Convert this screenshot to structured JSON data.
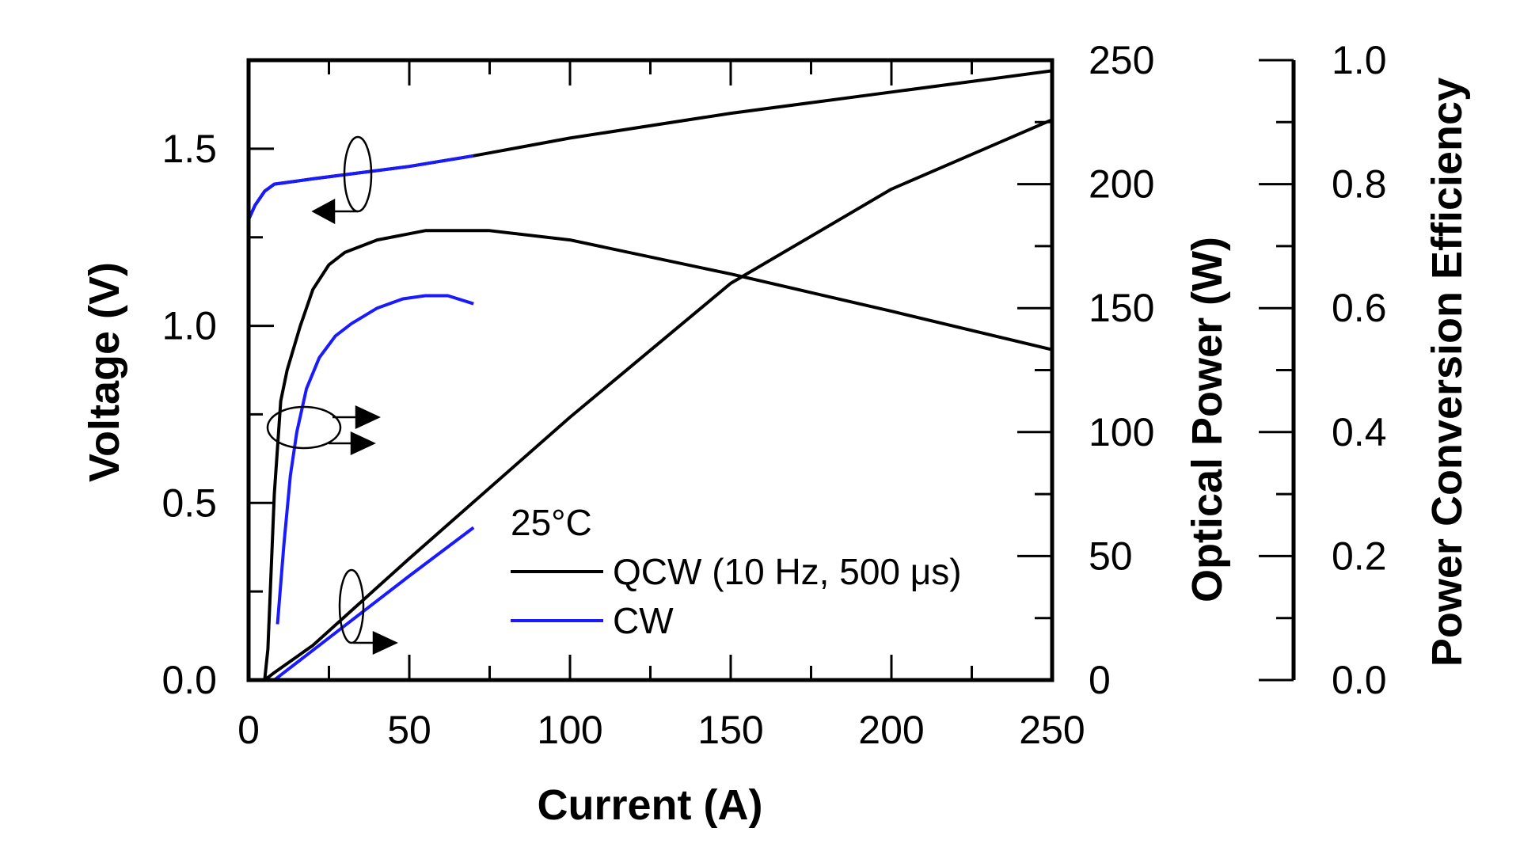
{
  "chart_data": {
    "type": "line",
    "xlabel": "Current (A)",
    "ylabel_left": "Voltage (V)",
    "ylabel_right1": "Optical Power (W)",
    "ylabel_right2": "Power Conversion Efficiency",
    "xlim": [
      0,
      250
    ],
    "ylim_left": [
      0,
      1.75
    ],
    "ylim_right1": [
      0,
      250
    ],
    "ylim_right2": [
      0,
      1.0
    ],
    "x_ticks": [
      "0",
      "50",
      "100",
      "150",
      "200",
      "250"
    ],
    "y_left_ticks": [
      "0.0",
      "0.5",
      "1.0",
      "1.5"
    ],
    "y_right1_ticks": [
      "0",
      "50",
      "100",
      "150",
      "200",
      "250"
    ],
    "y_right2_ticks": [
      "0.0",
      "0.2",
      "0.4",
      "0.6",
      "0.8",
      "1.0"
    ],
    "annotation": "25°C",
    "legend": [
      {
        "name": "QCW (10 Hz, 500 μs)",
        "color": "#000000"
      },
      {
        "name": "CW",
        "color": "#1a1aff"
      }
    ],
    "series": [
      {
        "legend": "QCW (10 Hz, 500 μs)",
        "quantity": "voltage",
        "axis": "left",
        "color": "#000000",
        "x": [
          0,
          2,
          5,
          8,
          20,
          50,
          70,
          100,
          150,
          200,
          250
        ],
        "y": [
          1.3,
          1.34,
          1.38,
          1.4,
          1.415,
          1.45,
          1.48,
          1.53,
          1.6,
          1.66,
          1.72
        ]
      },
      {
        "legend": "CW",
        "quantity": "voltage",
        "axis": "left",
        "color": "#1a1aff",
        "x": [
          0,
          2,
          5,
          8,
          20,
          50,
          70
        ],
        "y": [
          1.3,
          1.34,
          1.38,
          1.4,
          1.415,
          1.45,
          1.48
        ]
      },
      {
        "legend": "QCW (10 Hz, 500 μs)",
        "quantity": "efficiency",
        "axis": "right2",
        "color": "#000000",
        "x": [
          5,
          6,
          8,
          10,
          12,
          16,
          20,
          25,
          30,
          40,
          55,
          75,
          100,
          150,
          200,
          250
        ],
        "y": [
          0.0,
          0.05,
          0.3,
          0.45,
          0.5,
          0.57,
          0.63,
          0.67,
          0.69,
          0.71,
          0.725,
          0.725,
          0.71,
          0.655,
          0.595,
          0.533
        ]
      },
      {
        "legend": "CW",
        "quantity": "efficiency",
        "axis": "right2",
        "color": "#1a1aff",
        "x": [
          9,
          11,
          13,
          15,
          18,
          22,
          27,
          32,
          40,
          48,
          55,
          62,
          70
        ],
        "y": [
          0.09,
          0.22,
          0.33,
          0.4,
          0.47,
          0.52,
          0.555,
          0.575,
          0.6,
          0.615,
          0.62,
          0.62,
          0.607
        ]
      },
      {
        "legend": "QCW (10 Hz, 500 μs)",
        "quantity": "optical power",
        "axis": "right1",
        "color": "#000000",
        "x": [
          5,
          8,
          20,
          50,
          100,
          150,
          200,
          250
        ],
        "y": [
          0,
          3,
          14,
          49,
          106,
          160,
          198,
          226
        ]
      },
      {
        "legend": "CW",
        "quantity": "optical power",
        "axis": "right1",
        "color": "#1a1aff",
        "x": [
          8,
          10,
          30,
          50,
          70
        ],
        "y": [
          0,
          2,
          22,
          42,
          61.5
        ]
      }
    ]
  }
}
